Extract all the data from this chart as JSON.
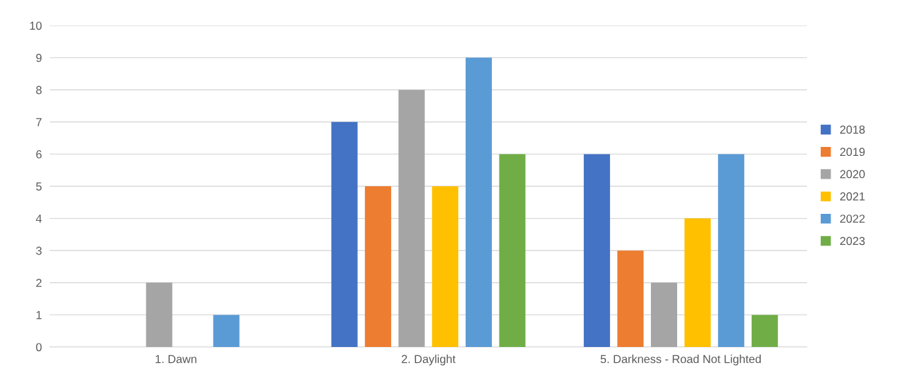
{
  "chart_data": {
    "type": "bar",
    "categories": [
      "1. Dawn",
      "2. Daylight",
      "5. Darkness - Road Not Lighted"
    ],
    "series": [
      {
        "name": "2018",
        "color": "#4472c4",
        "values": [
          null,
          7,
          6
        ]
      },
      {
        "name": "2019",
        "color": "#ed7d31",
        "values": [
          null,
          5,
          3
        ]
      },
      {
        "name": "2020",
        "color": "#a5a5a5",
        "values": [
          2,
          8,
          2
        ]
      },
      {
        "name": "2021",
        "color": "#ffc000",
        "values": [
          null,
          5,
          4
        ]
      },
      {
        "name": "2022",
        "color": "#5b9bd5",
        "values": [
          1,
          9,
          6
        ]
      },
      {
        "name": "2023",
        "color": "#70ad47",
        "values": [
          null,
          6,
          1
        ]
      }
    ],
    "ylim": [
      0,
      10
    ],
    "yticks": [
      0,
      1,
      2,
      3,
      4,
      5,
      6,
      7,
      8,
      9,
      10
    ],
    "grid": "y",
    "legend": "right"
  }
}
